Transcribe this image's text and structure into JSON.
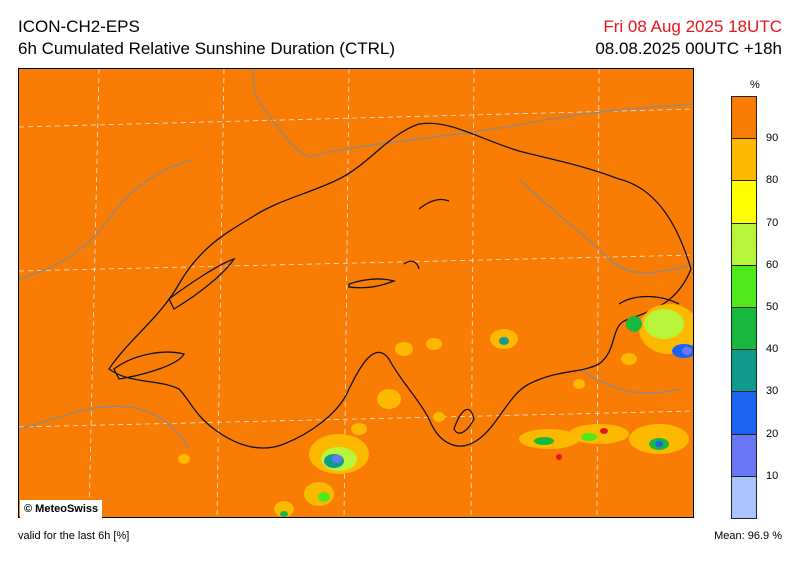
{
  "header": {
    "model": "ICON-CH2-EPS",
    "product": "6h Cumulated Relative Sunshine Duration (CTRL)",
    "valid_time": "Fri 08 Aug 2025 18UTC",
    "run": "08.08.2025 00UTC +18h"
  },
  "map": {
    "credit": "© MeteoSwiss",
    "background_color": "#f97d04"
  },
  "legend": {
    "unit": "%",
    "labels": [
      "90",
      "80",
      "70",
      "60",
      "50",
      "40",
      "30",
      "20",
      "10"
    ],
    "colors": [
      "#f97d04",
      "#fdb800",
      "#ffff00",
      "#b8f53a",
      "#4fe81a",
      "#16b83e",
      "#0f9a8e",
      "#1c63f0",
      "#6b78f5",
      "#a9c4ff"
    ]
  },
  "footer": {
    "validity": "valid for the last 6h [%]",
    "mean_label": "Mean:",
    "mean_value": "96.9 %"
  }
}
